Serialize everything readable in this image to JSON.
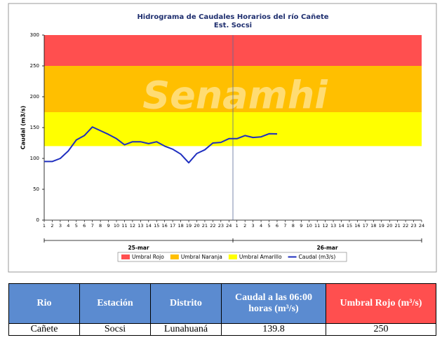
{
  "chart_data": {
    "type": "line",
    "title": "Hidrograma de Caudales Horarios del río Cañete",
    "subtitle": "Est. Socsi",
    "watermark": "Senamhi",
    "y_label": "Caudal (m3/s)",
    "categories": [
      "1",
      "2",
      "3",
      "4",
      "5",
      "6",
      "7",
      "8",
      "9",
      "10",
      "11",
      "12",
      "13",
      "14",
      "15",
      "16",
      "17",
      "18",
      "19",
      "20",
      "21",
      "22",
      "23",
      "24",
      "1",
      "2",
      "3",
      "4",
      "5",
      "6",
      "7",
      "8",
      "9",
      "10",
      "11",
      "12",
      "13",
      "14",
      "15",
      "16",
      "17",
      "18",
      "19",
      "20",
      "21",
      "22",
      "23",
      "24"
    ],
    "date_groups": [
      "25-mar",
      "26-mar"
    ],
    "bands": [
      {
        "name": "Umbral Rojo",
        "color": "#ff4f4f",
        "from": 250,
        "to": 300
      },
      {
        "name": "Umbral Naranja",
        "color": "#ffbf00",
        "from": 175,
        "to": 250
      },
      {
        "name": "Umbral Amarillo",
        "color": "#ffff00",
        "from": 120,
        "to": 175
      }
    ],
    "series": [
      {
        "name": "Caudal (m3/s)",
        "color": "#1f2fbf",
        "values": [
          95,
          95,
          100,
          112,
          130,
          137,
          151,
          145,
          139,
          132,
          122,
          127,
          127,
          124,
          127,
          120,
          115,
          107,
          93,
          108,
          114,
          125,
          126,
          132,
          132,
          137,
          134,
          135,
          140,
          139.8,
          null,
          null,
          null,
          null,
          null,
          null,
          null,
          null,
          null,
          null,
          null,
          null,
          null,
          null,
          null,
          null,
          null,
          null
        ]
      }
    ],
    "ylim": [
      0,
      300
    ],
    "yticks": [
      0,
      50,
      100,
      150,
      200,
      250,
      300
    ]
  },
  "table": {
    "header": [
      "Rio",
      "Estación",
      "Distrito",
      "Caudal a las 06:00 horas (m³/s)",
      "Umbral Rojo (m³/s)"
    ],
    "rows": [
      [
        "Cañete",
        "Socsi",
        "Lunahuaná",
        139.8,
        250
      ]
    ]
  }
}
